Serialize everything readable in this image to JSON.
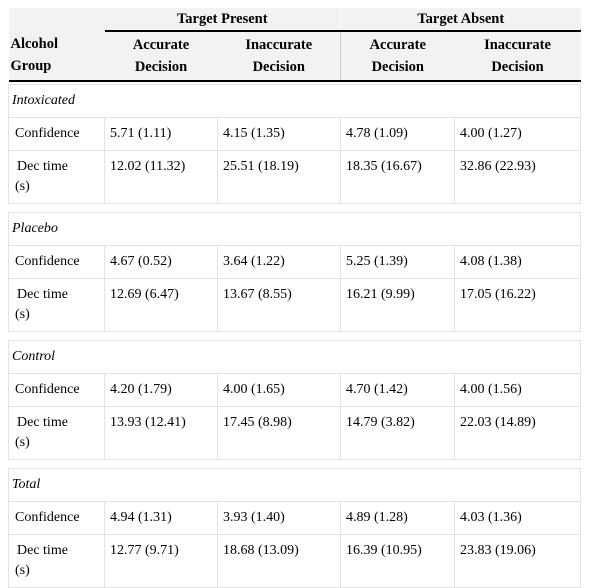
{
  "header": {
    "target_present": "Target Present",
    "target_absent": "Target Absent",
    "row_header": [
      "Alcohol",
      "Group"
    ],
    "sub_columns": [
      [
        "Accurate",
        "Decision"
      ],
      [
        "Inaccurate",
        "Decision"
      ],
      [
        "Accurate",
        "Decision"
      ],
      [
        "Inaccurate",
        "Decision"
      ]
    ]
  },
  "row_labels": {
    "confidence": "Confidence",
    "dec_time_line1": "Dec time",
    "dec_time_line2": "(s)"
  },
  "groups": [
    {
      "name": "Intoxicated",
      "confidence": [
        "5.71 (1.11)",
        "4.15 (1.35)",
        "4.78 (1.09)",
        "4.00 (1.27)"
      ],
      "dec_time": [
        "12.02 (11.32)",
        "25.51 (18.19)",
        "18.35 (16.67)",
        "32.86 (22.93)"
      ]
    },
    {
      "name": "Placebo",
      "confidence": [
        "4.67 (0.52)",
        "3.64 (1.22)",
        "5.25 (1.39)",
        "4.08 (1.38)"
      ],
      "dec_time": [
        "12.69 (6.47)",
        "13.67 (8.55)",
        "16.21 (9.99)",
        "17.05 (16.22)"
      ]
    },
    {
      "name": "Control",
      "confidence": [
        "4.20 (1.79)",
        "4.00 (1.65)",
        "4.70 (1.42)",
        "4.00 (1.56)"
      ],
      "dec_time": [
        "13.93 (12.41)",
        "17.45 (8.98)",
        "14.79 (3.82)",
        "22.03 (14.89)"
      ]
    },
    {
      "name": "Total",
      "confidence": [
        "4.94 (1.31)",
        "3.93 (1.40)",
        "4.89 (1.28)",
        "4.03 (1.36)"
      ],
      "dec_time": [
        "12.77 (9.71)",
        "18.68 (13.09)",
        "16.39 (10.95)",
        "23.83 (19.06)"
      ]
    }
  ]
}
